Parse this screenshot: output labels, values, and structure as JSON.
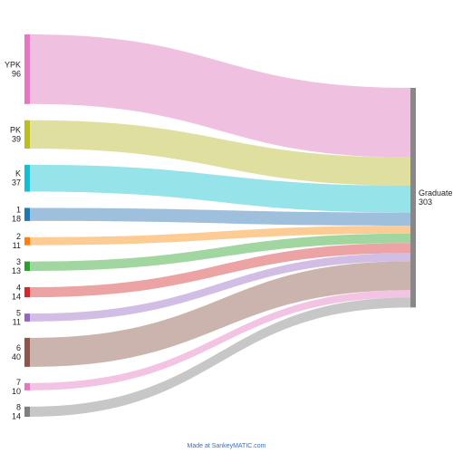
{
  "diagram": {
    "type": "sankey",
    "target": {
      "name": "Graduate",
      "value": "303",
      "color": "#888888"
    },
    "sources": [
      {
        "name": "YPK",
        "value": "96",
        "node_color": "#e377c2",
        "flow_color": "#f0c0e0"
      },
      {
        "name": "PK",
        "value": "39",
        "node_color": "#bcbd22",
        "flow_color": "#dfe09f"
      },
      {
        "name": "K",
        "value": "37",
        "node_color": "#17becf",
        "flow_color": "#97e3ea"
      },
      {
        "name": "1",
        "value": "18",
        "node_color": "#1f77b4",
        "flow_color": "#9fc0dd"
      },
      {
        "name": "2",
        "value": "11",
        "node_color": "#ff7f0e",
        "flow_color": "#fdcb94"
      },
      {
        "name": "3",
        "value": "13",
        "node_color": "#2ca02c",
        "flow_color": "#a2d6a0"
      },
      {
        "name": "4",
        "value": "14",
        "node_color": "#d62728",
        "flow_color": "#eba3a4"
      },
      {
        "name": "5",
        "value": "11",
        "node_color": "#9467bd",
        "flow_color": "#d2bde4"
      },
      {
        "name": "6",
        "value": "40",
        "node_color": "#8c564b",
        "flow_color": "#cbb4ae"
      },
      {
        "name": "7",
        "value": "10",
        "node_color": "#e377c2",
        "flow_color": "#f2c3e3"
      },
      {
        "name": "8",
        "value": "14",
        "node_color": "#7f7f7f",
        "flow_color": "#c7c7c7"
      }
    ]
  },
  "footer": {
    "credit": "Made at SankeyMATIC.com"
  }
}
